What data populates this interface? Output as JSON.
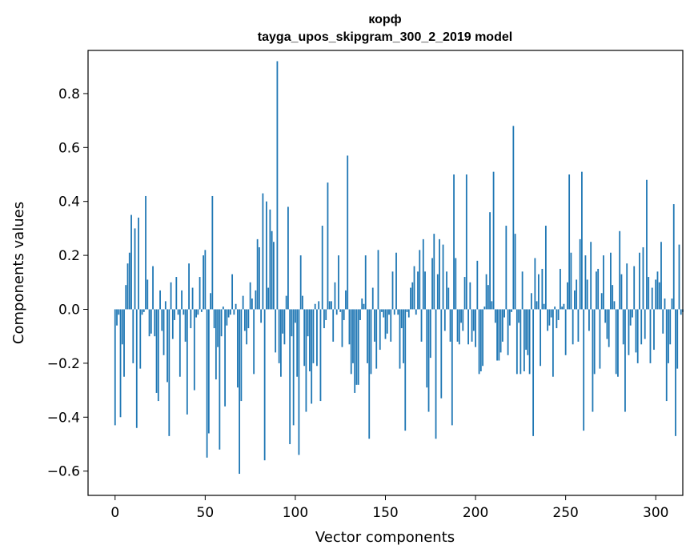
{
  "chart_data": {
    "type": "bar",
    "title_line1": "корф",
    "title_line2": "tayga_upos_skipgram_300_2_2019 model",
    "xlabel": "Vector components",
    "ylabel": "Components values",
    "xlim": [
      -15,
      315
    ],
    "ylim": [
      -0.69,
      0.96
    ],
    "xticks": [
      0,
      50,
      100,
      150,
      200,
      250,
      300
    ],
    "xtick_labels": [
      "0",
      "50",
      "100",
      "150",
      "200",
      "250",
      "300"
    ],
    "yticks": [
      -0.6,
      -0.4,
      -0.2,
      0.0,
      0.2,
      0.4,
      0.6,
      0.8
    ],
    "ytick_labels": [
      "−0.6",
      "−0.4",
      "−0.2",
      "0.0",
      "0.2",
      "0.4",
      "0.6",
      "0.8"
    ],
    "bar_color": "#1f77b4",
    "values": [
      -0.43,
      -0.06,
      -0.02,
      -0.4,
      -0.13,
      -0.25,
      0.09,
      0.17,
      0.21,
      0.35,
      -0.2,
      0.3,
      -0.44,
      0.34,
      -0.22,
      -0.02,
      -0.01,
      0.42,
      0.11,
      -0.1,
      -0.09,
      0.16,
      -0.1,
      -0.31,
      -0.34,
      0.07,
      -0.08,
      -0.17,
      0.03,
      -0.27,
      -0.47,
      0.1,
      -0.11,
      -0.04,
      0.12,
      -0.02,
      -0.25,
      0.07,
      -0.02,
      -0.12,
      -0.39,
      0.17,
      -0.07,
      0.08,
      -0.3,
      -0.03,
      -0.02,
      0.12,
      -0.01,
      0.2,
      0.22,
      -0.55,
      -0.46,
      0.06,
      0.42,
      -0.07,
      -0.26,
      -0.14,
      -0.52,
      -0.1,
      0.01,
      -0.36,
      -0.06,
      -0.03,
      -0.02,
      0.13,
      -0.02,
      0.02,
      -0.29,
      -0.61,
      -0.34,
      0.05,
      -0.08,
      -0.13,
      -0.07,
      0.1,
      0.04,
      -0.24,
      0.07,
      0.26,
      0.23,
      -0.05,
      0.43,
      -0.56,
      0.4,
      0.08,
      0.37,
      0.29,
      0.25,
      -0.16,
      0.92,
      -0.2,
      -0.25,
      -0.09,
      -0.13,
      0.05,
      0.38,
      -0.5,
      -0.1,
      -0.43,
      -0.05,
      -0.25,
      -0.54,
      0.2,
      0.05,
      -0.21,
      -0.38,
      -0.1,
      -0.23,
      -0.35,
      -0.2,
      0.02,
      -0.21,
      0.03,
      -0.34,
      0.31,
      -0.07,
      -0.04,
      0.47,
      0.03,
      0.03,
      -0.12,
      0.1,
      -0.02,
      0.2,
      -0.01,
      -0.14,
      -0.04,
      0.07,
      0.57,
      -0.13,
      -0.24,
      -0.2,
      -0.31,
      -0.28,
      -0.28,
      -0.04,
      0.04,
      0.02,
      0.2,
      -0.2,
      -0.48,
      -0.24,
      0.08,
      -0.12,
      -0.22,
      0.22,
      -0.15,
      -0.01,
      -0.03,
      -0.11,
      -0.09,
      -0.02,
      -0.12,
      0.14,
      -0.02,
      0.21,
      -0.02,
      -0.22,
      -0.07,
      -0.2,
      -0.45,
      -0.01,
      -0.03,
      0.08,
      0.1,
      0.16,
      -0.02,
      0.14,
      0.22,
      -0.12,
      0.26,
      0.14,
      -0.29,
      -0.38,
      -0.18,
      0.19,
      0.28,
      -0.48,
      0.13,
      0.26,
      -0.33,
      0.24,
      -0.08,
      0.14,
      0.08,
      -0.12,
      -0.43,
      0.5,
      0.19,
      -0.12,
      -0.13,
      -0.05,
      -0.08,
      0.12,
      0.5,
      -0.13,
      0.1,
      -0.12,
      -0.08,
      -0.14,
      0.18,
      -0.24,
      -0.23,
      -0.21,
      0.01,
      0.13,
      0.09,
      0.36,
      0.03,
      0.51,
      -0.05,
      -0.19,
      -0.19,
      -0.16,
      -0.12,
      -0.03,
      0.31,
      -0.17,
      -0.06,
      -0.01,
      0.68,
      0.28,
      -0.24,
      -0.05,
      -0.24,
      0.14,
      -0.23,
      -0.15,
      -0.17,
      -0.24,
      0.06,
      -0.47,
      0.19,
      0.03,
      0.13,
      -0.21,
      0.15,
      0.02,
      0.31,
      -0.08,
      -0.06,
      -0.03,
      -0.25,
      0.01,
      -0.07,
      -0.04,
      0.15,
      0.01,
      0.02,
      -0.17,
      0.1,
      0.5,
      0.21,
      -0.13,
      0.07,
      0.11,
      -0.12,
      0.26,
      0.51,
      -0.45,
      0.2,
      0.11,
      -0.08,
      0.25,
      -0.38,
      -0.24,
      0.14,
      0.15,
      -0.22,
      0.06,
      0.2,
      -0.05,
      -0.11,
      -0.14,
      0.21,
      0.09,
      0.03,
      -0.24,
      -0.25,
      0.29,
      0.13,
      -0.13,
      -0.38,
      0.17,
      -0.17,
      -0.06,
      -0.03,
      0.16,
      -0.16,
      -0.2,
      0.21,
      -0.13,
      0.23,
      -0.11,
      0.48,
      0.12,
      -0.2,
      0.08,
      -0.15,
      0.11,
      0.14,
      0.1,
      0.25,
      -0.09,
      0.04,
      -0.34,
      -0.2,
      -0.13,
      0.04,
      0.39,
      -0.47,
      -0.22,
      0.24,
      -0.02,
      -0.01
    ]
  }
}
